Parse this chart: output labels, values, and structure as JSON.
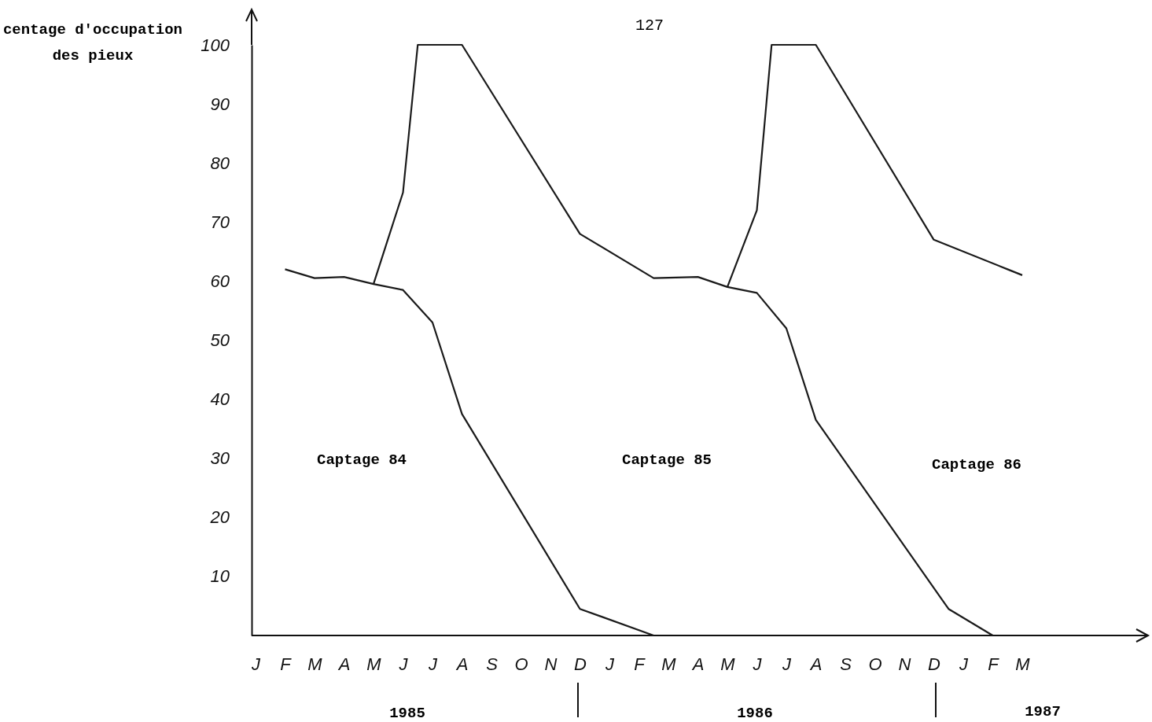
{
  "chart_data": {
    "type": "line",
    "ylabel": "centage d'occupation\ndes pieux",
    "categories": [
      "J",
      null,
      "F",
      null,
      "M",
      null,
      "A",
      null,
      "M",
      null,
      "J",
      null,
      "J",
      null,
      "A",
      null,
      "S",
      null,
      "O",
      null,
      "N",
      null,
      "D",
      null,
      "J",
      null,
      "F",
      null,
      "M",
      null,
      "A",
      null,
      "M",
      null,
      "J",
      null,
      "J",
      null,
      "A",
      null,
      "S",
      null,
      "O",
      null,
      "N",
      null,
      "D",
      null,
      "J",
      null,
      "F",
      null,
      "M",
      null,
      null,
      null,
      null,
      null,
      null,
      null
    ],
    "ylim": [
      0,
      100
    ],
    "yticks": [
      10,
      20,
      30,
      40,
      50,
      60,
      70,
      80,
      90,
      100
    ],
    "series": [
      {
        "color": "#1a1a1a",
        "values": [
          null,
          null,
          62,
          null,
          60.5,
          null,
          60.7,
          null,
          59.5,
          null,
          58.5,
          null,
          53,
          null,
          37.5,
          null,
          null,
          null,
          null,
          null,
          null,
          null,
          4.5,
          null,
          null,
          null,
          null,
          0,
          null,
          null,
          null,
          null,
          null,
          null,
          null,
          null,
          null,
          null,
          null,
          null,
          null,
          null,
          null,
          null,
          null,
          null,
          null,
          null,
          null,
          null,
          null,
          null,
          null,
          null,
          null,
          null,
          null,
          null,
          null,
          null
        ]
      },
      {
        "color": "#1a1a1a",
        "values": [
          null,
          null,
          null,
          null,
          null,
          null,
          null,
          null,
          59.5,
          null,
          75,
          100,
          null,
          null,
          100,
          null,
          null,
          null,
          null,
          null,
          null,
          null,
          68,
          null,
          null,
          null,
          null,
          60.5,
          null,
          null,
          60.7,
          null,
          59,
          null,
          58,
          null,
          52,
          null,
          36.5,
          null,
          null,
          null,
          null,
          null,
          null,
          null,
          null,
          4.5,
          null,
          null,
          0,
          null,
          null,
          null,
          null,
          null,
          null,
          null,
          null,
          null
        ]
      },
      {
        "color": "#1a1a1a",
        "values": [
          null,
          null,
          null,
          null,
          null,
          null,
          null,
          null,
          null,
          null,
          null,
          null,
          null,
          null,
          null,
          null,
          null,
          null,
          null,
          null,
          null,
          null,
          null,
          null,
          null,
          null,
          null,
          null,
          null,
          null,
          null,
          null,
          59,
          null,
          72,
          100,
          null,
          null,
          100,
          null,
          null,
          null,
          null,
          null,
          null,
          null,
          67,
          null,
          null,
          null,
          null,
          62,
          61,
          null,
          null,
          null,
          null,
          null,
          null,
          null
        ]
      }
    ],
    "grid": false,
    "marker": "none",
    "line_style": "solid",
    "annotations": [
      "127",
      "Captage 84",
      "Captage 85",
      "Captage 86",
      "1985",
      "1986",
      "1987"
    ]
  }
}
